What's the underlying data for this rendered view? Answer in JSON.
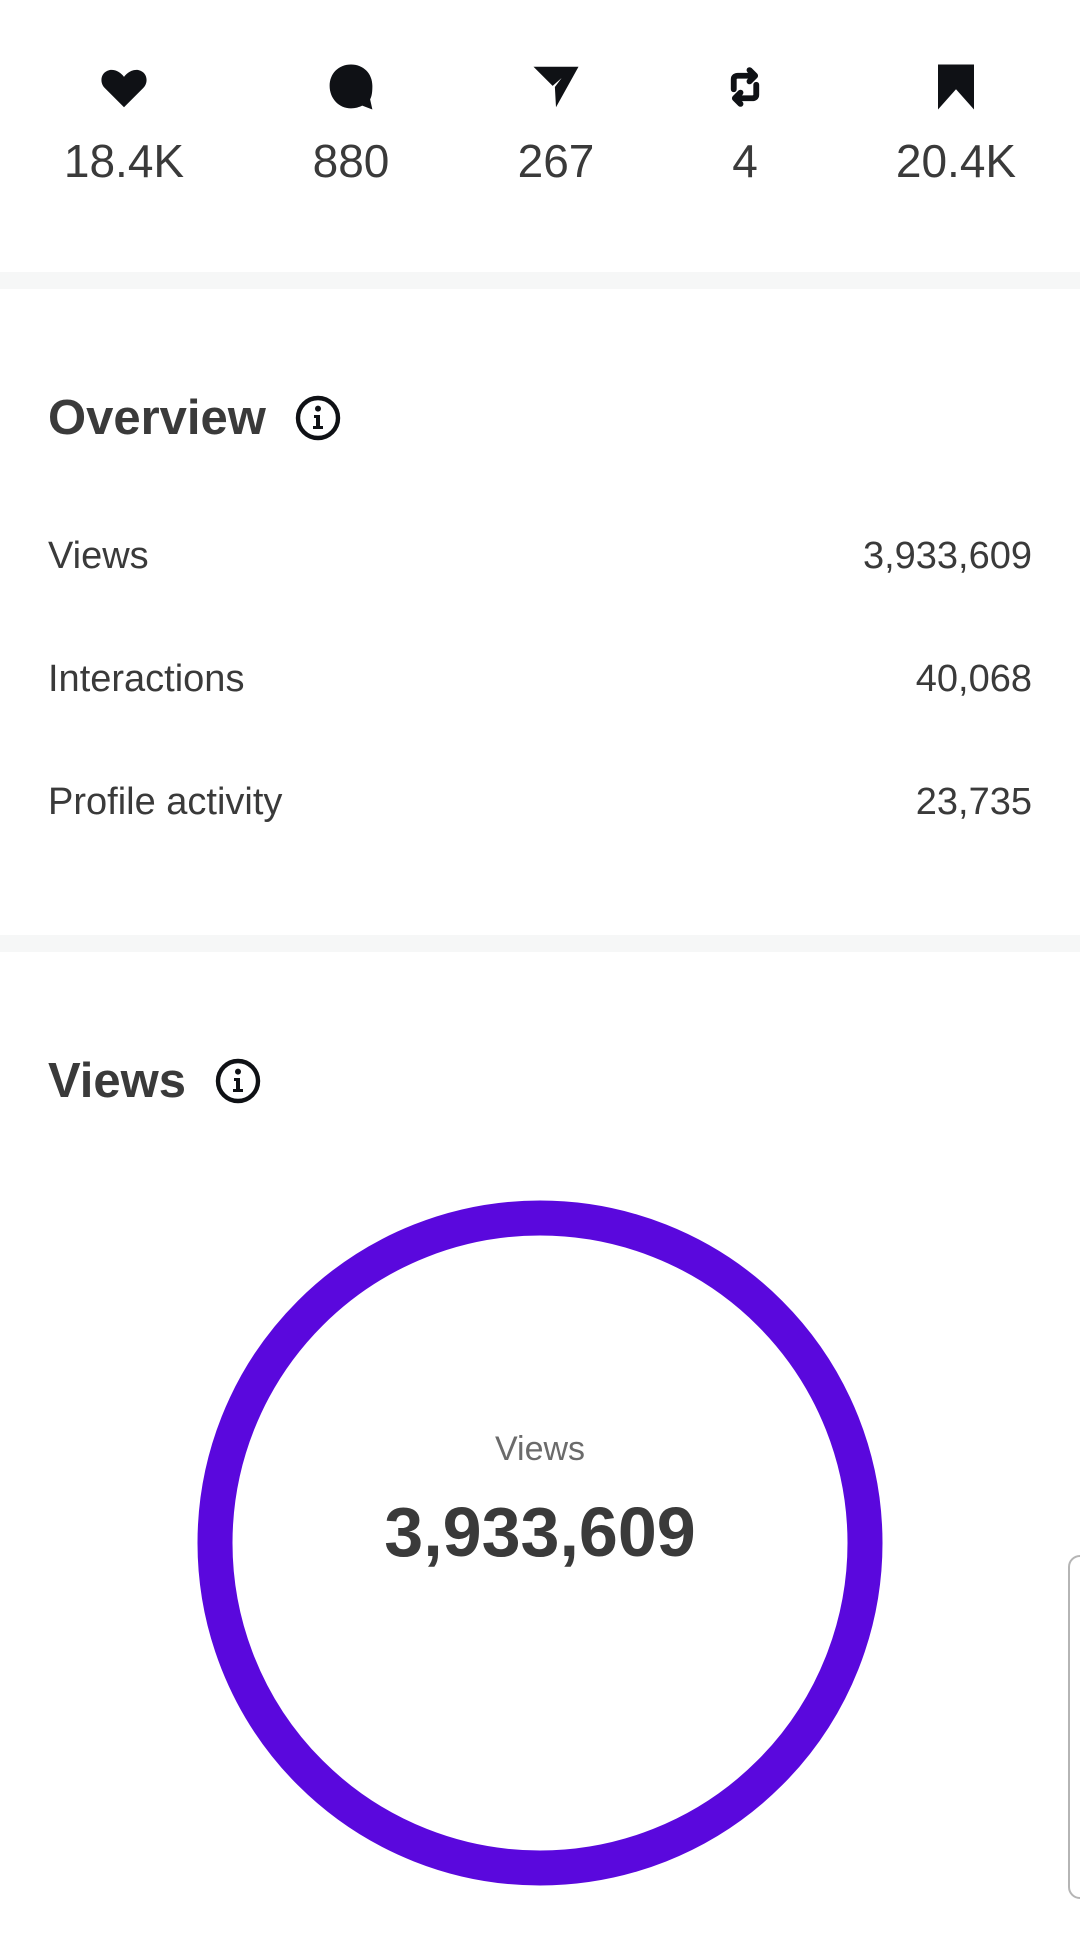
{
  "stats": [
    {
      "icon": "heart-icon",
      "value": "18.4K"
    },
    {
      "icon": "comment-icon",
      "value": "880"
    },
    {
      "icon": "send-icon",
      "value": "267"
    },
    {
      "icon": "repost-icon",
      "value": "4"
    },
    {
      "icon": "bookmark-icon",
      "value": "20.4K"
    }
  ],
  "overview": {
    "title": "Overview",
    "rows": [
      {
        "label": "Views",
        "value": "3,933,609"
      },
      {
        "label": "Interactions",
        "value": "40,068"
      },
      {
        "label": "Profile activity",
        "value": "23,735"
      }
    ]
  },
  "views": {
    "title": "Views",
    "ring_label": "Views",
    "ring_value": "3,933,609",
    "ring_fill_percent": 100,
    "ring_color": "#5a08dd"
  }
}
